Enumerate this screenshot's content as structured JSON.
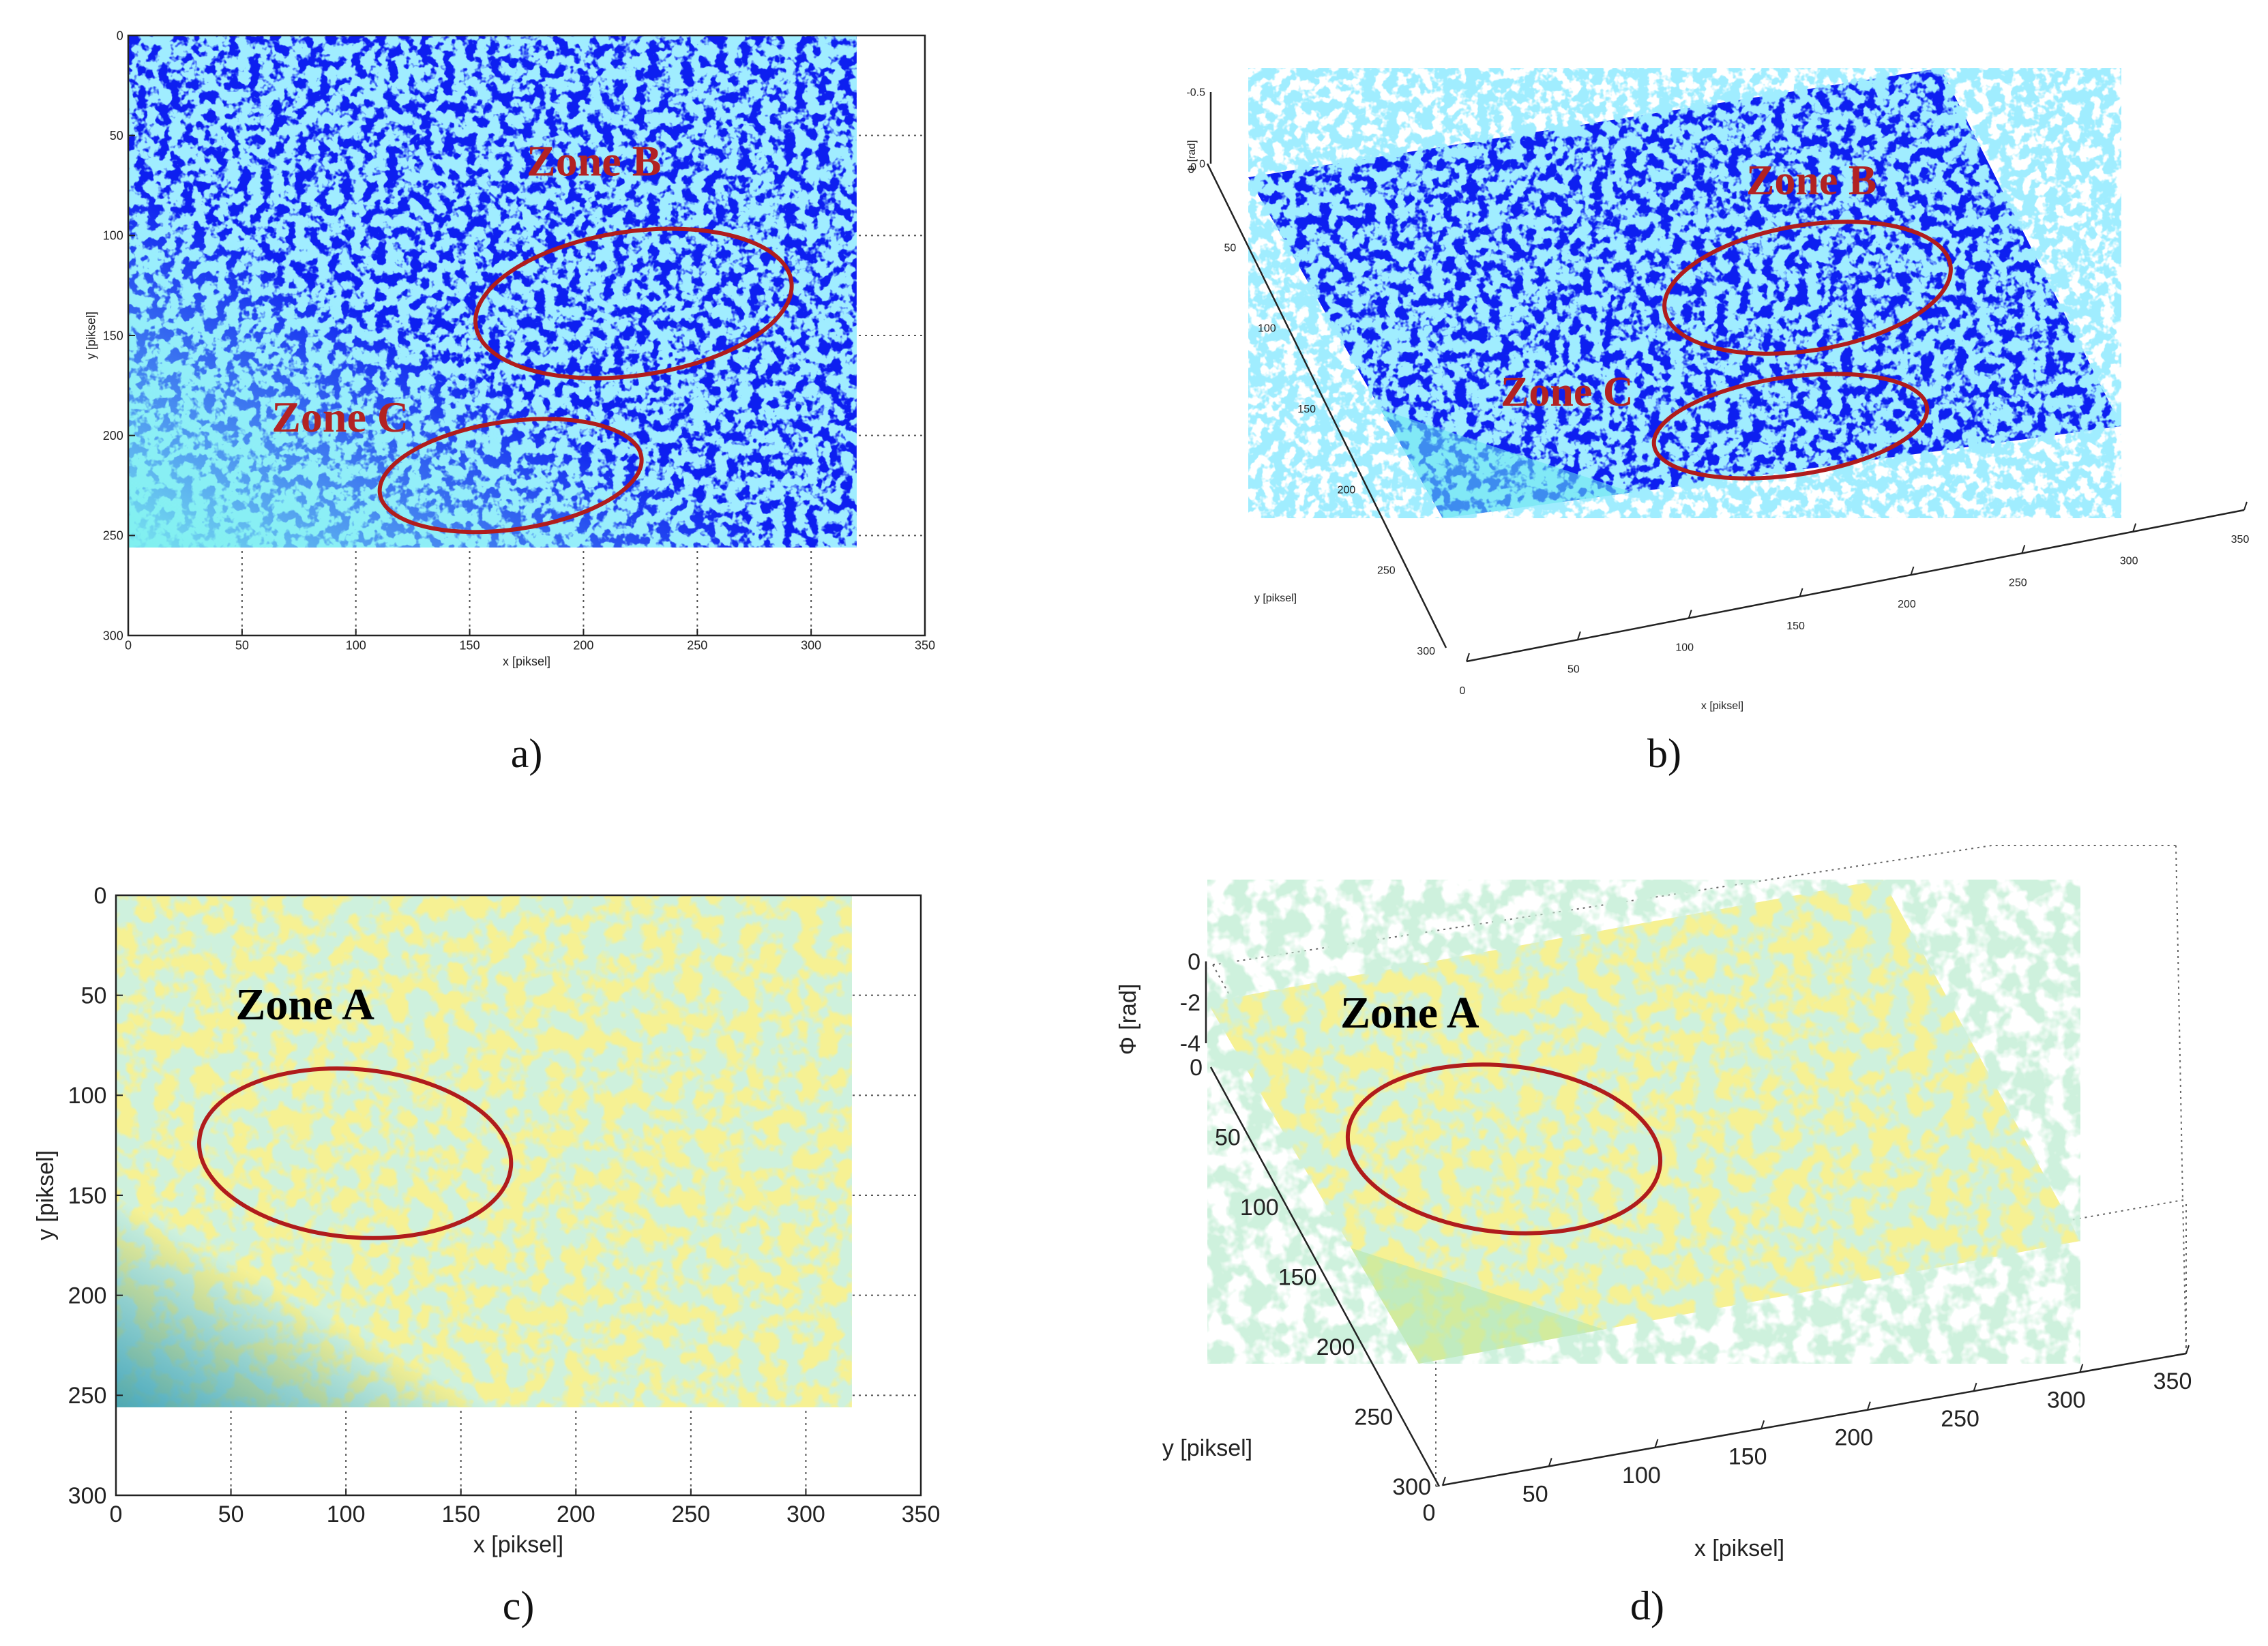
{
  "chart_data": [
    {
      "panel": "a)",
      "type": "heatmap",
      "xlabel": "x [piksel]",
      "ylabel": "y [piksel]",
      "xlim": [
        0,
        350
      ],
      "ylim": [
        300,
        0
      ],
      "xticks": [
        0,
        50,
        100,
        150,
        200,
        250,
        300,
        350
      ],
      "yticks": [
        0,
        50,
        100,
        150,
        200,
        250,
        300
      ],
      "data_extent": {
        "x": [
          0,
          320
        ],
        "y": [
          0,
          256
        ]
      },
      "grid": true,
      "colormap": "dominant blue",
      "annotations": [
        {
          "text": "Zone B",
          "x": 175,
          "y": 70,
          "color": "#b22222"
        },
        {
          "text": "Zone C",
          "x": 63,
          "y": 198,
          "color": "#b22222"
        }
      ],
      "ellipses": [
        {
          "label": "Zone B",
          "cx": 222,
          "cy": 134,
          "rx": 70,
          "ry": 36,
          "angle": -8
        },
        {
          "label": "Zone C",
          "cx": 168,
          "cy": 220,
          "rx": 58,
          "ry": 27,
          "angle": -8
        }
      ]
    },
    {
      "panel": "b)",
      "type": "surface",
      "xlabel": "x [piksel]",
      "ylabel": "y [piksel]",
      "zlabel": "Φ [rad]",
      "xticks": [
        0,
        50,
        100,
        150,
        200,
        250,
        300,
        350
      ],
      "yticks": [
        0,
        50,
        100,
        150,
        200,
        250,
        300
      ],
      "zticks": [
        -0.5,
        0
      ],
      "colormap": "dominant blue",
      "annotations": [
        {
          "text": "Zone B",
          "color": "#b22222"
        },
        {
          "text": "Zone C",
          "color": "#b22222"
        }
      ]
    },
    {
      "panel": "c)",
      "type": "heatmap",
      "xlabel": "x  [piksel]",
      "ylabel": "y  [piksel]",
      "xlim": [
        0,
        350
      ],
      "ylim": [
        300,
        0
      ],
      "xticks": [
        0,
        50,
        100,
        150,
        200,
        250,
        300,
        350
      ],
      "yticks": [
        0,
        50,
        100,
        150,
        200,
        250,
        300
      ],
      "data_extent": {
        "x": [
          0,
          320
        ],
        "y": [
          0,
          256
        ]
      },
      "grid": true,
      "colormap": "dominant yellow",
      "annotations": [
        {
          "text": "Zone A",
          "x": 52,
          "y": 62,
          "color": "#000000"
        }
      ],
      "ellipses": [
        {
          "label": "Zone A",
          "cx": 104,
          "cy": 129,
          "rx": 68,
          "ry": 42,
          "angle": 5
        }
      ]
    },
    {
      "panel": "d)",
      "type": "surface",
      "xlabel": "x  [piksel]",
      "ylabel": "y  [piksel]",
      "zlabel": "Φ [rad]",
      "xticks": [
        0,
        50,
        100,
        150,
        200,
        250,
        300,
        350
      ],
      "yticks": [
        0,
        50,
        100,
        150,
        200,
        250,
        300
      ],
      "zticks": [
        0,
        -2,
        -4
      ],
      "colormap": "dominant yellow",
      "annotations": [
        {
          "text": "Zone A",
          "color": "#000000"
        }
      ]
    }
  ],
  "colors": {
    "map_blue": "#0d1ff0",
    "map_yellow": "#f6f193",
    "map_cyan": "#67e6ef",
    "map_green": "#b5e6a6",
    "ellipse": "#b01c1c",
    "zone_red": "#b22222"
  }
}
